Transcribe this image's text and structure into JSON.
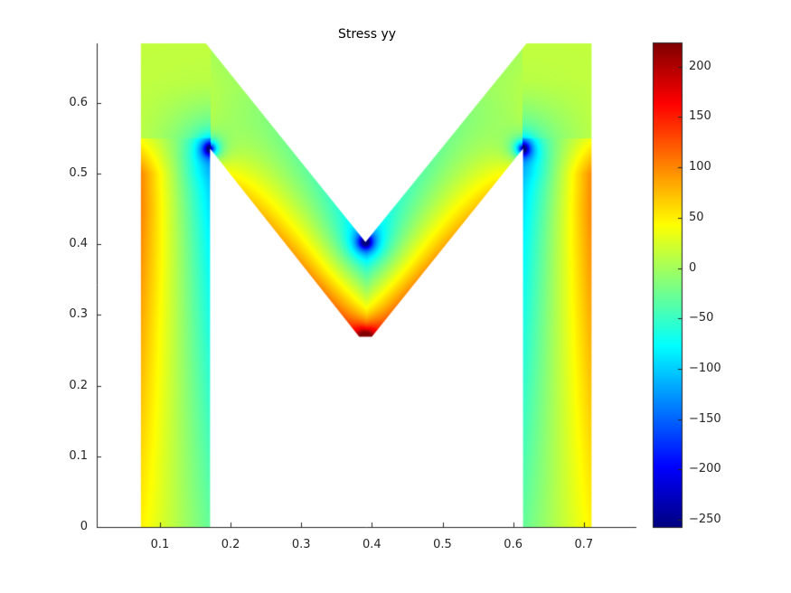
{
  "chart_data": {
    "type": "heatmap",
    "title": "Stress yy",
    "xlabel": "",
    "ylabel": "",
    "xlim": [
      0.0105,
      0.7745
    ],
    "ylim": [
      0,
      0.684
    ],
    "xticks": [
      0.1,
      0.2,
      0.3,
      0.4,
      0.5,
      0.6,
      0.7
    ],
    "xtick_labels": [
      "0.1",
      "0.2",
      "0.3",
      "0.4",
      "0.5",
      "0.6",
      "0.7"
    ],
    "yticks": [
      0,
      0.1,
      0.2,
      0.3,
      0.4,
      0.5,
      0.6
    ],
    "ytick_labels": [
      "0",
      "0.1",
      "0.2",
      "0.3",
      "0.4",
      "0.5",
      "0.6"
    ],
    "grid": false,
    "colormap": "jet",
    "clim": [
      -257,
      224
    ],
    "colorbar": {
      "location": "right",
      "ticks": [
        200,
        150,
        100,
        50,
        0,
        -50,
        -100,
        -150,
        -200,
        -250
      ],
      "tick_labels": [
        "200",
        "150",
        "100",
        "50",
        "0",
        "−50",
        "−100",
        "−150",
        "−200",
        "−250"
      ]
    },
    "domain_shape": [
      [
        0.073,
        0
      ],
      [
        0.171,
        0
      ],
      [
        0.171,
        0.535
      ],
      [
        0.382,
        0.269
      ],
      [
        0.4,
        0.269
      ],
      [
        0.614,
        0.535
      ],
      [
        0.614,
        0
      ],
      [
        0.711,
        0
      ],
      [
        0.711,
        0.684
      ],
      [
        0.619,
        0.684
      ],
      [
        0.391,
        0.403
      ],
      [
        0.165,
        0.684
      ],
      [
        0.073,
        0.684
      ]
    ],
    "features": {
      "max_location": [
        0.391,
        0.269
      ],
      "min_locations": [
        [
          0.171,
          0.535
        ],
        [
          0.614,
          0.535
        ],
        [
          0.391,
          0.403
        ]
      ]
    }
  }
}
